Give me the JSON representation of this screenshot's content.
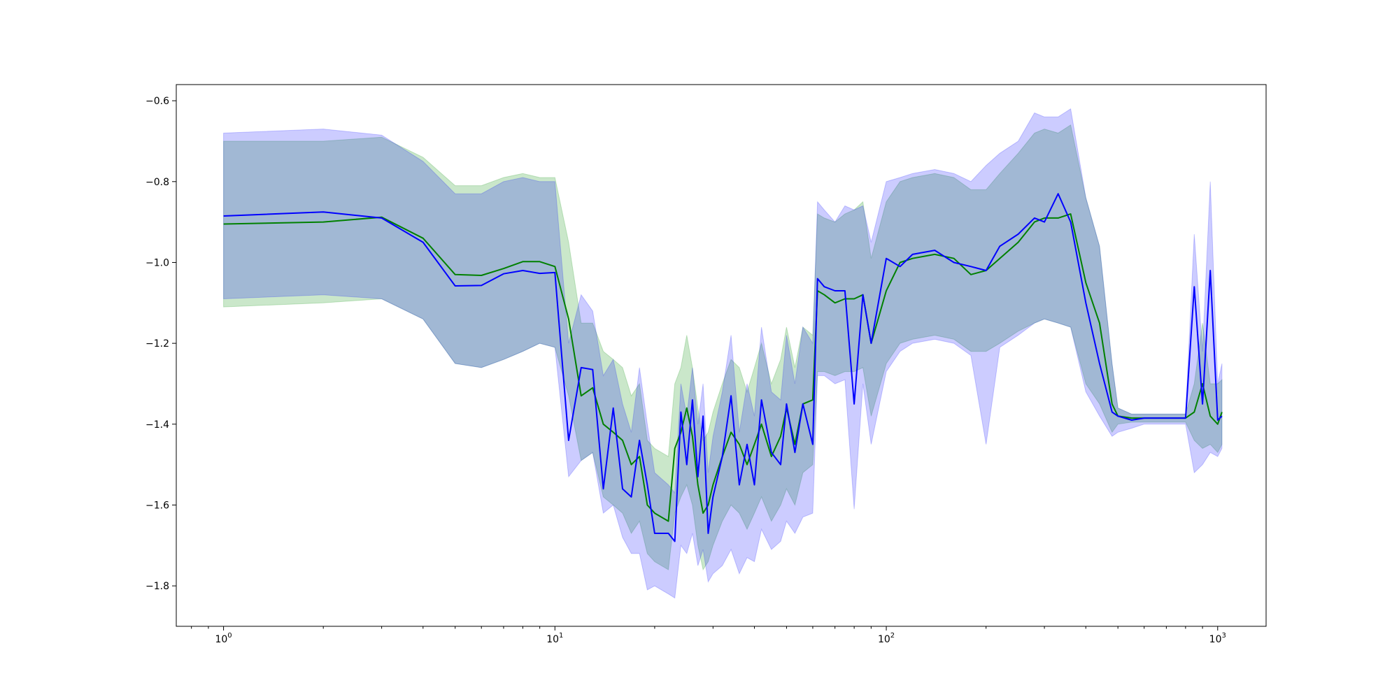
{
  "chart_data": {
    "type": "line",
    "title": "",
    "xlabel": "",
    "ylabel": "",
    "x_scale": "log",
    "xlim": [
      0.72,
      1400
    ],
    "ylim": [
      -1.9,
      -0.56
    ],
    "grid": false,
    "legend": false,
    "x_ticks": [
      {
        "value": 1,
        "label": "10^0"
      },
      {
        "value": 10,
        "label": "10^1"
      },
      {
        "value": 100,
        "label": "10^2"
      },
      {
        "value": 1000,
        "label": "10^3"
      }
    ],
    "y_ticks": [
      {
        "value": -0.6,
        "label": "−0.6"
      },
      {
        "value": -0.8,
        "label": "−0.8"
      },
      {
        "value": -1.0,
        "label": "−1.0"
      },
      {
        "value": -1.2,
        "label": "−1.2"
      },
      {
        "value": -1.4,
        "label": "−1.4"
      },
      {
        "value": -1.6,
        "label": "−1.6"
      },
      {
        "value": -1.8,
        "label": "−1.8"
      }
    ],
    "series": [
      {
        "color": "#008000",
        "band_color": "#2ca02c",
        "band_opacity": 0.25,
        "x": [
          1,
          2,
          3,
          4,
          5,
          6,
          7,
          8,
          9,
          10,
          11,
          12,
          13,
          14,
          15,
          16,
          17,
          18,
          19,
          20,
          22,
          23,
          24,
          25,
          26,
          27,
          28,
          29,
          30,
          32,
          34,
          36,
          38,
          40,
          42,
          45,
          48,
          50,
          53,
          56,
          60,
          62,
          65,
          70,
          75,
          80,
          85,
          90,
          100,
          110,
          120,
          140,
          160,
          180,
          200,
          220,
          250,
          280,
          300,
          330,
          360,
          400,
          440,
          480,
          500,
          550,
          600,
          700,
          800,
          850,
          900,
          950,
          1000,
          1030
        ],
        "y": [
          -0.905,
          -0.9,
          -0.888,
          -0.94,
          -1.03,
          -1.032,
          -1.015,
          -0.998,
          -0.998,
          -1.01,
          -1.14,
          -1.33,
          -1.31,
          -1.4,
          -1.42,
          -1.44,
          -1.5,
          -1.48,
          -1.6,
          -1.62,
          -1.64,
          -1.46,
          -1.42,
          -1.36,
          -1.43,
          -1.55,
          -1.62,
          -1.6,
          -1.55,
          -1.48,
          -1.42,
          -1.45,
          -1.5,
          -1.45,
          -1.4,
          -1.48,
          -1.43,
          -1.36,
          -1.45,
          -1.35,
          -1.34,
          -1.07,
          -1.08,
          -1.1,
          -1.09,
          -1.09,
          -1.08,
          -1.2,
          -1.07,
          -1.0,
          -0.99,
          -0.98,
          -0.99,
          -1.03,
          -1.02,
          -0.99,
          -0.95,
          -0.9,
          -0.89,
          -0.89,
          -0.88,
          -1.05,
          -1.15,
          -1.35,
          -1.38,
          -1.385,
          -1.385,
          -1.385,
          -1.385,
          -1.37,
          -1.3,
          -1.38,
          -1.4,
          -1.37
        ],
        "lower": [
          -1.11,
          -1.1,
          -1.09,
          -1.14,
          -1.25,
          -1.26,
          -1.24,
          -1.22,
          -1.2,
          -1.21,
          -1.33,
          -1.49,
          -1.47,
          -1.58,
          -1.6,
          -1.62,
          -1.67,
          -1.64,
          -1.72,
          -1.74,
          -1.76,
          -1.62,
          -1.58,
          -1.55,
          -1.6,
          -1.7,
          -1.76,
          -1.74,
          -1.7,
          -1.64,
          -1.6,
          -1.62,
          -1.66,
          -1.62,
          -1.58,
          -1.64,
          -1.6,
          -1.56,
          -1.6,
          -1.52,
          -1.5,
          -1.27,
          -1.27,
          -1.28,
          -1.27,
          -1.27,
          -1.26,
          -1.38,
          -1.25,
          -1.2,
          -1.19,
          -1.18,
          -1.19,
          -1.22,
          -1.22,
          -1.2,
          -1.17,
          -1.15,
          -1.14,
          -1.15,
          -1.16,
          -1.3,
          -1.35,
          -1.42,
          -1.4,
          -1.395,
          -1.395,
          -1.395,
          -1.395,
          -1.44,
          -1.46,
          -1.45,
          -1.47,
          -1.45
        ],
        "upper": [
          -0.7,
          -0.7,
          -0.69,
          -0.74,
          -0.81,
          -0.81,
          -0.79,
          -0.78,
          -0.79,
          -0.79,
          -0.95,
          -1.15,
          -1.15,
          -1.22,
          -1.24,
          -1.26,
          -1.33,
          -1.3,
          -1.44,
          -1.46,
          -1.48,
          -1.3,
          -1.26,
          -1.18,
          -1.26,
          -1.36,
          -1.44,
          -1.42,
          -1.37,
          -1.3,
          -1.24,
          -1.26,
          -1.32,
          -1.26,
          -1.2,
          -1.3,
          -1.24,
          -1.16,
          -1.26,
          -1.16,
          -1.18,
          -0.88,
          -0.89,
          -0.9,
          -0.88,
          -0.87,
          -0.85,
          -0.99,
          -0.85,
          -0.8,
          -0.79,
          -0.78,
          -0.79,
          -0.82,
          -0.82,
          -0.78,
          -0.73,
          -0.68,
          -0.67,
          -0.68,
          -0.66,
          -0.84,
          -0.96,
          -1.25,
          -1.36,
          -1.375,
          -1.375,
          -1.375,
          -1.375,
          -1.3,
          -1.15,
          -1.3,
          -1.3,
          -1.29
        ]
      },
      {
        "color": "#0000ff",
        "band_color": "#0000ff",
        "band_opacity": 0.2,
        "x": [
          1,
          2,
          3,
          4,
          5,
          6,
          7,
          8,
          9,
          10,
          11,
          12,
          13,
          14,
          15,
          16,
          17,
          18,
          19,
          20,
          22,
          23,
          24,
          25,
          26,
          27,
          28,
          29,
          30,
          32,
          34,
          36,
          38,
          40,
          42,
          45,
          48,
          50,
          53,
          56,
          60,
          62,
          65,
          70,
          75,
          80,
          85,
          90,
          100,
          110,
          120,
          140,
          160,
          180,
          200,
          220,
          250,
          280,
          300,
          330,
          360,
          400,
          440,
          480,
          500,
          550,
          600,
          700,
          800,
          850,
          900,
          950,
          1000,
          1030
        ],
        "y": [
          -0.885,
          -0.875,
          -0.89,
          -0.95,
          -1.058,
          -1.057,
          -1.028,
          -1.02,
          -1.027,
          -1.025,
          -1.44,
          -1.26,
          -1.265,
          -1.56,
          -1.36,
          -1.56,
          -1.58,
          -1.44,
          -1.55,
          -1.67,
          -1.67,
          -1.69,
          -1.37,
          -1.5,
          -1.34,
          -1.53,
          -1.38,
          -1.67,
          -1.58,
          -1.48,
          -1.33,
          -1.55,
          -1.45,
          -1.55,
          -1.34,
          -1.47,
          -1.5,
          -1.35,
          -1.47,
          -1.35,
          -1.45,
          -1.04,
          -1.06,
          -1.07,
          -1.07,
          -1.35,
          -1.08,
          -1.2,
          -0.99,
          -1.01,
          -0.98,
          -0.97,
          -1.0,
          -1.01,
          -1.02,
          -0.96,
          -0.93,
          -0.89,
          -0.9,
          -0.83,
          -0.9,
          -1.1,
          -1.25,
          -1.37,
          -1.38,
          -1.39,
          -1.385,
          -1.385,
          -1.385,
          -1.06,
          -1.35,
          -1.02,
          -1.39,
          -1.38
        ],
        "lower": [
          -1.09,
          -1.08,
          -1.09,
          -1.14,
          -1.25,
          -1.26,
          -1.24,
          -1.22,
          -1.2,
          -1.21,
          -1.53,
          -1.49,
          -1.47,
          -1.62,
          -1.6,
          -1.68,
          -1.72,
          -1.72,
          -1.81,
          -1.8,
          -1.82,
          -1.83,
          -1.7,
          -1.72,
          -1.67,
          -1.75,
          -1.71,
          -1.79,
          -1.77,
          -1.75,
          -1.71,
          -1.77,
          -1.73,
          -1.74,
          -1.66,
          -1.71,
          -1.69,
          -1.64,
          -1.67,
          -1.63,
          -1.62,
          -1.28,
          -1.28,
          -1.3,
          -1.29,
          -1.61,
          -1.3,
          -1.45,
          -1.27,
          -1.22,
          -1.2,
          -1.19,
          -1.2,
          -1.23,
          -1.45,
          -1.21,
          -1.18,
          -1.15,
          -1.14,
          -1.15,
          -1.16,
          -1.32,
          -1.38,
          -1.43,
          -1.42,
          -1.41,
          -1.4,
          -1.4,
          -1.4,
          -1.52,
          -1.5,
          -1.47,
          -1.48,
          -1.46
        ],
        "upper": [
          -0.68,
          -0.67,
          -0.685,
          -0.75,
          -0.83,
          -0.83,
          -0.8,
          -0.79,
          -0.8,
          -0.8,
          -1.2,
          -1.08,
          -1.12,
          -1.28,
          -1.24,
          -1.35,
          -1.42,
          -1.26,
          -1.4,
          -1.52,
          -1.55,
          -1.57,
          -1.3,
          -1.38,
          -1.26,
          -1.4,
          -1.3,
          -1.52,
          -1.43,
          -1.32,
          -1.18,
          -1.42,
          -1.3,
          -1.38,
          -1.16,
          -1.32,
          -1.34,
          -1.18,
          -1.3,
          -1.16,
          -1.2,
          -0.85,
          -0.87,
          -0.9,
          -0.86,
          -0.87,
          -0.86,
          -0.95,
          -0.8,
          -0.79,
          -0.78,
          -0.77,
          -0.78,
          -0.8,
          -0.76,
          -0.73,
          -0.7,
          -0.63,
          -0.64,
          -0.64,
          -0.62,
          -0.84,
          -0.96,
          -1.25,
          -1.36,
          -1.375,
          -1.375,
          -1.375,
          -1.375,
          -0.93,
          -1.22,
          -0.8,
          -1.3,
          -1.25
        ]
      }
    ]
  }
}
